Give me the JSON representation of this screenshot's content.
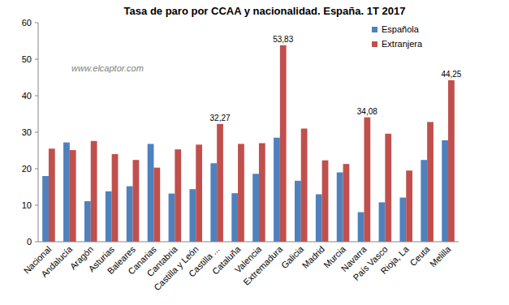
{
  "chart_data": {
    "type": "bar",
    "title": "Tasa de paro por CCAA y nacionalidad. España. 1T 2017",
    "annotations": [
      "www.elcaptor.com"
    ],
    "categories": [
      "Nacional",
      "Andalucía",
      "Aragón",
      "Asturias",
      "Baleares",
      "Canarias",
      "Cantabria",
      "Castilla y León",
      "Castilla ...",
      "Cataluña",
      "Valencia",
      "Extremadura",
      "Galicia",
      "Madrid",
      "Murcia",
      "Navarra",
      "País Vasco",
      "Rioja, La",
      "Ceuta",
      "Melilla"
    ],
    "series": [
      {
        "name": "Española",
        "color": "#4f81bd",
        "values": [
          18.0,
          27.2,
          11.1,
          13.8,
          15.2,
          26.8,
          13.2,
          14.4,
          21.5,
          13.3,
          18.6,
          28.5,
          16.7,
          13.0,
          19.0,
          8.1,
          10.8,
          12.1,
          22.4,
          27.8
        ]
      },
      {
        "name": "Extranjera",
        "color": "#c0504d",
        "values": [
          25.5,
          25.1,
          27.6,
          24.0,
          22.4,
          20.3,
          25.3,
          26.6,
          32.27,
          26.8,
          27.0,
          53.83,
          31.0,
          22.3,
          21.3,
          34.08,
          29.6,
          19.5,
          32.8,
          44.25
        ],
        "value_labels": [
          null,
          null,
          null,
          null,
          null,
          null,
          null,
          null,
          "32,27",
          null,
          null,
          "53,83",
          null,
          null,
          null,
          "34,08",
          null,
          null,
          null,
          "44,25"
        ]
      }
    ],
    "ylim": [
      0,
      60
    ],
    "yticks": [
      0,
      10,
      20,
      30,
      40,
      50,
      60
    ],
    "grid": false,
    "legend": "top-right",
    "data_labels": true
  }
}
